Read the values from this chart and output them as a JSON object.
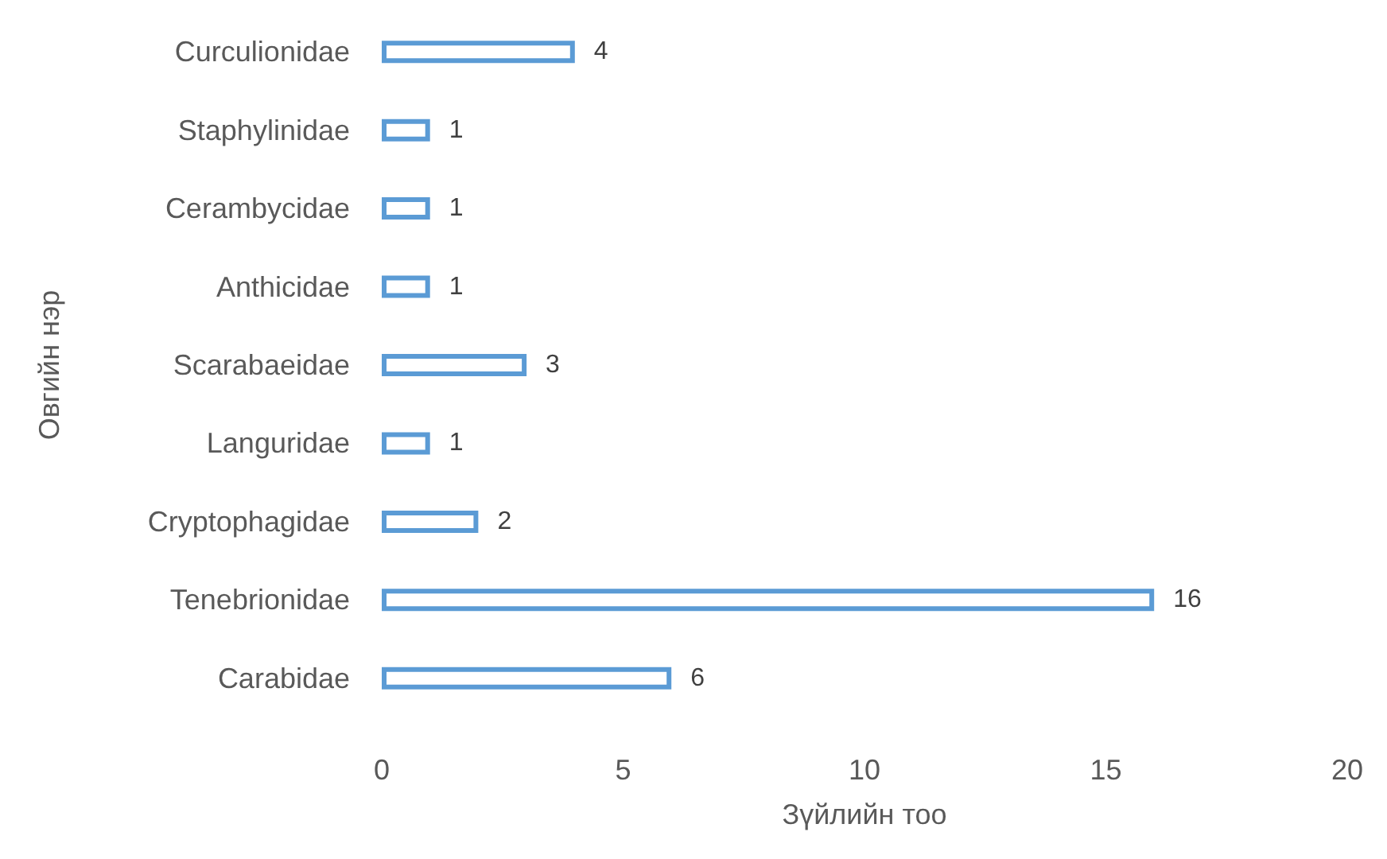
{
  "chart_data": {
    "type": "bar",
    "orientation": "horizontal",
    "xlabel": "Зүйлийн тоо",
    "ylabel": "Овгийн нэр",
    "categories": [
      "Curculionidae",
      "Staphylinidae",
      "Cerambycidae",
      "Anthicidae",
      "Scarabaeidae",
      "Languridae",
      "Cryptophagidae",
      "Tenebrionidae",
      "Carabidae"
    ],
    "values": [
      4,
      1,
      1,
      1,
      3,
      1,
      2,
      16,
      6
    ],
    "color": "#5b9bd5",
    "xlim": [
      0,
      20
    ],
    "xticks": [
      0,
      5,
      10,
      15,
      20
    ],
    "grid": false,
    "data_labels": true
  }
}
